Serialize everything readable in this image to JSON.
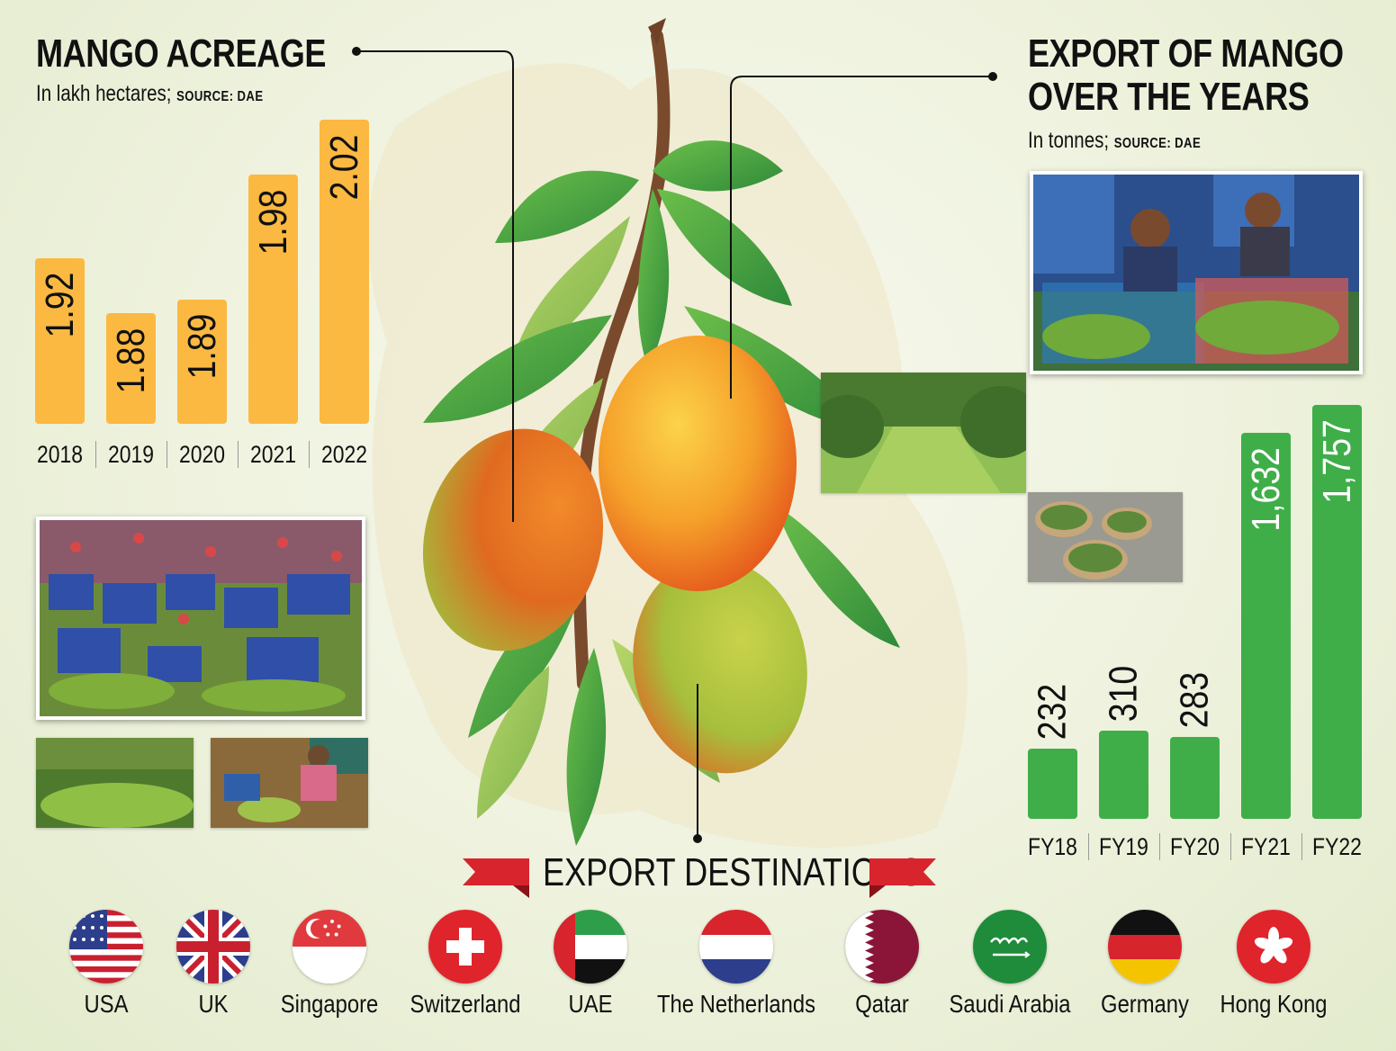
{
  "acreage": {
    "title": "MANGO ACREAGE",
    "subtitle": "In lakh hectares;",
    "source": "SOURCE: DAE",
    "color": "#fbb942"
  },
  "export": {
    "title_line1": "EXPORT OF MANGO",
    "title_line2": "OVER THE YEARS",
    "subtitle": "In tonnes;",
    "source": "SOURCE: DAE",
    "color": "#3fae49"
  },
  "chart_data": [
    {
      "type": "bar",
      "title": "MANGO ACREAGE",
      "subtitle": "In lakh hectares; SOURCE: DAE",
      "categories": [
        "2018",
        "2019",
        "2020",
        "2021",
        "2022"
      ],
      "values": [
        1.92,
        1.88,
        1.89,
        1.98,
        2.02
      ],
      "value_labels": [
        "1.92",
        "1.88",
        "1.89",
        "1.98",
        "2.02"
      ],
      "color": "#fbb942",
      "xlabel": "",
      "ylabel": ""
    },
    {
      "type": "bar",
      "title": "EXPORT OF MANGO OVER THE YEARS",
      "subtitle": "In tonnes; SOURCE: DAE",
      "categories": [
        "FY18",
        "FY19",
        "FY20",
        "FY21",
        "FY22"
      ],
      "values": [
        232,
        310,
        283,
        1632,
        1757
      ],
      "value_labels": [
        "232",
        "310",
        "283",
        "1,632",
        "1,757"
      ],
      "color": "#3fae49",
      "xlabel": "",
      "ylabel": ""
    }
  ],
  "destinations": {
    "title": "EXPORT DESTINATIONS",
    "ribbon_color": "#d8242c",
    "countries": [
      {
        "name": "USA",
        "icon": "usa-flag-icon"
      },
      {
        "name": "UK",
        "icon": "uk-flag-icon"
      },
      {
        "name": "Singapore",
        "icon": "singapore-flag-icon"
      },
      {
        "name": "Switzerland",
        "icon": "switzerland-flag-icon"
      },
      {
        "name": "UAE",
        "icon": "uae-flag-icon"
      },
      {
        "name": "The Netherlands",
        "icon": "netherlands-flag-icon"
      },
      {
        "name": "Qatar",
        "icon": "qatar-flag-icon"
      },
      {
        "name": "Saudi Arabia",
        "icon": "saudi-arabia-flag-icon"
      },
      {
        "name": "Germany",
        "icon": "germany-flag-icon"
      },
      {
        "name": "Hong Kong",
        "icon": "hong-kong-flag-icon"
      }
    ]
  }
}
